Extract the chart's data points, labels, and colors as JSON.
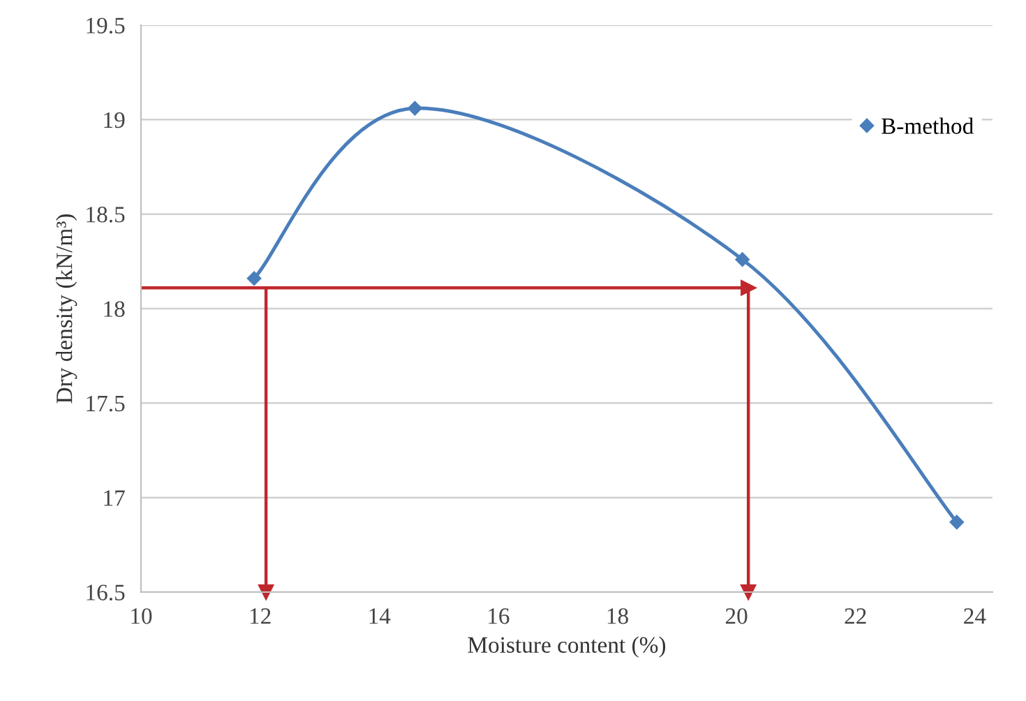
{
  "chart_data": {
    "type": "line",
    "xlabel": "Moisture content (%)",
    "ylabel": "Dry density (kN/m³)",
    "xlim": [
      10,
      24.3
    ],
    "xticks": [
      10,
      12,
      14,
      16,
      18,
      20,
      22,
      24
    ],
    "ylim": [
      16.5,
      19.5
    ],
    "yticks": [
      16.5,
      17,
      17.5,
      18,
      18.5,
      19,
      19.5
    ],
    "grid": "y",
    "legend": "top right",
    "marker": "diamond",
    "series": [
      {
        "name": "B-method",
        "color": "#4a7ebb",
        "x": [
          11.9,
          14.6,
          20.1,
          23.7
        ],
        "values": [
          18.16,
          19.06,
          18.26,
          16.87
        ]
      },
      {
        "type": "line",
        "marker": "triangle",
        "color": "#c0282d",
        "x": [
          10,
          20.2
        ],
        "values": [
          18.11,
          18.11
        ]
      },
      {
        "type": "line",
        "marker": "triangle",
        "color": "#c0282d",
        "x": [
          12.1,
          12.1
        ],
        "values": [
          18.11,
          16.5
        ]
      },
      {
        "type": "line",
        "marker": "triangle",
        "color": "#c0282d",
        "x": [
          20.2,
          20.2
        ],
        "values": [
          18.11,
          16.5
        ]
      }
    ]
  }
}
